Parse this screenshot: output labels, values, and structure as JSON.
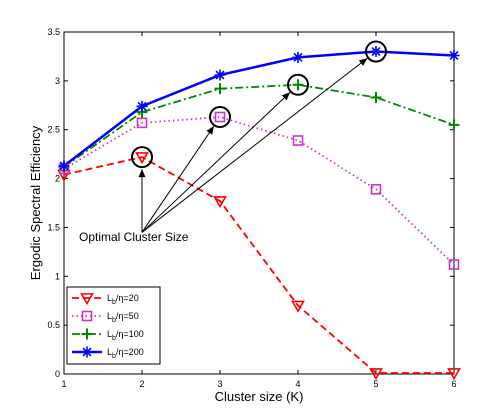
{
  "chart_data": {
    "type": "line",
    "xlabel": "Cluster size (K)",
    "ylabel": "Ergodic Spectral Efficiency",
    "x": [
      1,
      2,
      3,
      4,
      5,
      6
    ],
    "xlim": [
      1,
      6
    ],
    "ylim": [
      0,
      3.5
    ],
    "xticks": [
      "1",
      "2",
      "3",
      "4",
      "5",
      "6"
    ],
    "yticks": [
      "0",
      "0.5",
      "1",
      "1.5",
      "2",
      "2.5",
      "3",
      "3.5"
    ],
    "grid": false,
    "legend_position": "bottom-left",
    "series": [
      {
        "name_main": "L",
        "name_sub": "b",
        "name_rest": "/η=20",
        "values": [
          2.04,
          2.22,
          1.77,
          0.7,
          0.01,
          0.01
        ],
        "color": "#ff0000",
        "marker": "triangle-down",
        "dash": "dashed"
      },
      {
        "name_main": "L",
        "name_sub": "b",
        "name_rest": "/η=50",
        "values": [
          2.1,
          2.57,
          2.63,
          2.39,
          1.89,
          1.12
        ],
        "color": "#cc33cc",
        "marker": "square",
        "dash": "dotted"
      },
      {
        "name_main": "L",
        "name_sub": "b",
        "name_rest": "/η=100",
        "values": [
          2.12,
          2.68,
          2.92,
          2.96,
          2.83,
          2.55
        ],
        "color": "#008800",
        "marker": "plus",
        "dash": "dashdot"
      },
      {
        "name_main": "L",
        "name_sub": "b",
        "name_rest": "/η=200",
        "values": [
          2.13,
          2.74,
          3.06,
          3.24,
          3.3,
          3.26
        ],
        "color": "#0000ff",
        "marker": "asterisk",
        "dash": "solid"
      }
    ],
    "annotation": {
      "text": "Optimal Cluster Size",
      "circled_points": [
        [
          2,
          2.22
        ],
        [
          3,
          2.63
        ],
        [
          4,
          2.96
        ],
        [
          5,
          3.3
        ]
      ]
    }
  }
}
